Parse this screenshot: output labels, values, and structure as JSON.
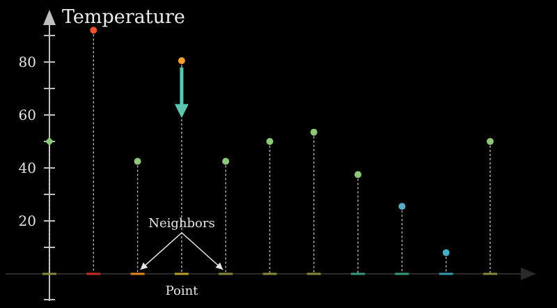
{
  "chart_data": {
    "type": "scatter",
    "ylabel": "Temperature",
    "xlabel": "Point",
    "y_ticks": [
      "20",
      "40",
      "60",
      "80"
    ],
    "ylim": [
      0,
      100
    ],
    "points": [
      {
        "x": 0,
        "y": 50,
        "color": "#8ec77a",
        "marker": "diamond"
      },
      {
        "x": 1,
        "y": 92,
        "color": "#f0502a",
        "marker": "circle"
      },
      {
        "x": 2,
        "y": 42.5,
        "color": "#8ec77a",
        "marker": "circle"
      },
      {
        "x": 3,
        "y": 80.5,
        "color": "#f0a030",
        "marker": "circle"
      },
      {
        "x": 4,
        "y": 42.5,
        "color": "#8ec77a",
        "marker": "circle"
      },
      {
        "x": 5,
        "y": 50,
        "color": "#8ec77a",
        "marker": "circle"
      },
      {
        "x": 6,
        "y": 53.5,
        "color": "#8ec77a",
        "marker": "circle"
      },
      {
        "x": 7,
        "y": 37.5,
        "color": "#8ec77a",
        "marker": "circle"
      },
      {
        "x": 8,
        "y": 25.5,
        "color": "#5aaac8",
        "marker": "circle"
      },
      {
        "x": 9,
        "y": 8,
        "color": "#3fb0c8",
        "marker": "circle"
      },
      {
        "x": 10,
        "y": 50,
        "color": "#8ec77a",
        "marker": "circle"
      }
    ],
    "base_tick_colors": [
      "#8a8a3a",
      "#d02a20",
      "#e08a20",
      "#b8a030",
      "#8a8a3a",
      "#8a8a3a",
      "#8a8a3a",
      "#3a9a80",
      "#3a9a80",
      "#3a9ab0",
      "#8a8a3a"
    ],
    "arrow": {
      "x": 3,
      "from_y": 78,
      "to_y": 62,
      "color": "#5ec5b0"
    },
    "annotation": {
      "text": "Neighbors",
      "points_to_x": [
        2,
        4
      ]
    },
    "axis_color": "#bfbfbf"
  }
}
